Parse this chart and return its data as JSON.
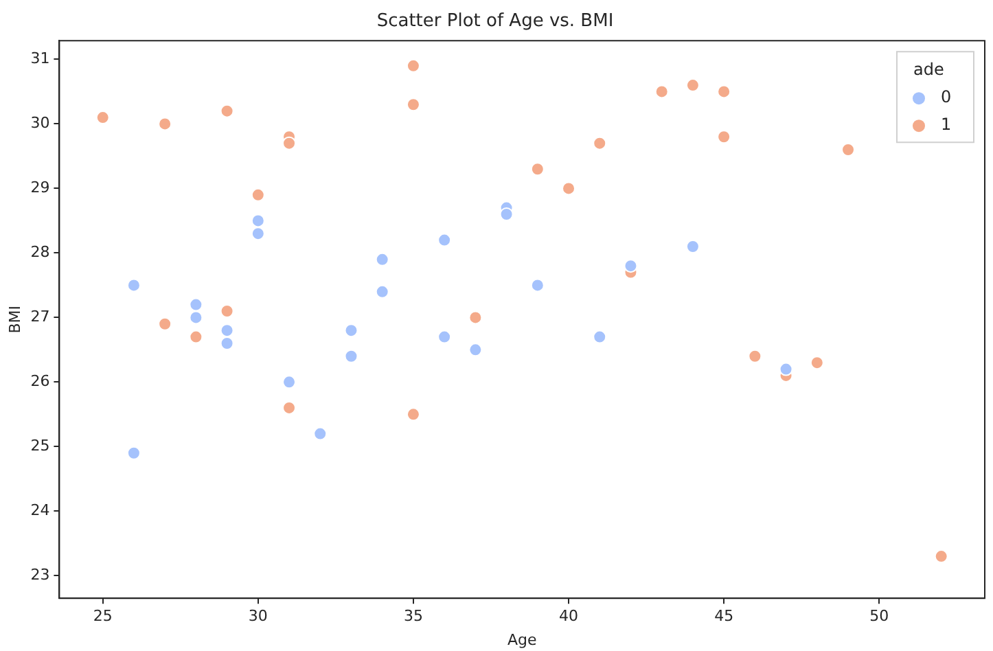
{
  "chart_data": {
    "type": "scatter",
    "title": "Scatter Plot of Age vs. BMI",
    "xlabel": "Age",
    "ylabel": "BMI",
    "legend_title": "ade",
    "legend": "top right",
    "grid": false,
    "marker": "circle",
    "xlim": [
      23.6,
      53.4
    ],
    "xticks": [
      25,
      30,
      35,
      40,
      45,
      50
    ],
    "ylim": [
      22.65,
      31.29
    ],
    "yticks": [
      23,
      24,
      25,
      26,
      27,
      28,
      29,
      30,
      31
    ],
    "series": [
      {
        "name": "0",
        "color": "#a5c2fc",
        "x": [
          26,
          26,
          28,
          28,
          29,
          29,
          30,
          30,
          31,
          32,
          33,
          33,
          34,
          34,
          36,
          36,
          37,
          38,
          38,
          39,
          41,
          42,
          44,
          47
        ],
        "values": [
          27.5,
          24.9,
          27.2,
          27.0,
          26.8,
          26.6,
          28.5,
          28.3,
          26.0,
          25.2,
          26.8,
          26.4,
          27.9,
          27.4,
          28.2,
          26.7,
          26.5,
          28.7,
          28.6,
          27.5,
          26.7,
          27.8,
          28.1,
          26.2
        ]
      },
      {
        "name": "1",
        "color": "#f4aa8a",
        "x": [
          25,
          27,
          27,
          28,
          29,
          29,
          30,
          31,
          31,
          31,
          35,
          35,
          35,
          37,
          39,
          40,
          41,
          42,
          43,
          44,
          45,
          45,
          46,
          47,
          48,
          49,
          52
        ],
        "values": [
          30.1,
          30.0,
          26.9,
          26.7,
          30.2,
          27.1,
          28.9,
          29.8,
          29.7,
          25.6,
          30.9,
          30.3,
          25.5,
          27.0,
          29.3,
          29.0,
          29.7,
          27.7,
          30.5,
          30.6,
          30.5,
          29.8,
          26.4,
          26.1,
          26.3,
          29.6,
          23.3
        ]
      }
    ]
  }
}
